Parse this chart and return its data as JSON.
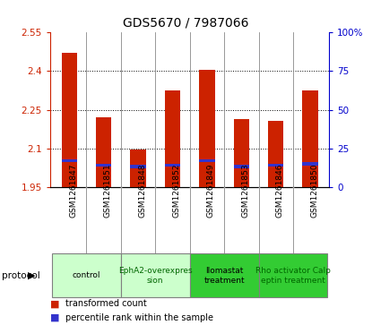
{
  "title": "GDS5670 / 7987066",
  "samples": [
    "GSM1261847",
    "GSM1261851",
    "GSM1261848",
    "GSM1261852",
    "GSM1261849",
    "GSM1261853",
    "GSM1261846",
    "GSM1261850"
  ],
  "transformed_counts": [
    2.47,
    2.22,
    2.095,
    2.325,
    2.405,
    2.215,
    2.205,
    2.325
  ],
  "percentile_ranks": [
    17,
    14,
    13,
    14,
    17,
    13,
    14,
    15
  ],
  "base_value": 1.95,
  "ylim_left": [
    1.95,
    2.55
  ],
  "ylim_right": [
    0,
    100
  ],
  "yticks_left": [
    1.95,
    2.1,
    2.25,
    2.4,
    2.55
  ],
  "yticks_right": [
    0,
    25,
    50,
    75,
    100
  ],
  "ytick_labels_left": [
    "1.95",
    "2.1",
    "2.25",
    "2.4",
    "2.55"
  ],
  "ytick_labels_right": [
    "0",
    "25",
    "50",
    "75",
    "100%"
  ],
  "bar_color": "#cc2200",
  "percentile_color": "#3333cc",
  "protocols": [
    {
      "label": "control",
      "indices": [
        0,
        1
      ],
      "color": "#ccffcc",
      "text_color": "#000000"
    },
    {
      "label": "EphA2-overexpres\nsion",
      "indices": [
        2,
        3
      ],
      "color": "#ccffcc",
      "text_color": "#006600"
    },
    {
      "label": "llomastat\ntreatment",
      "indices": [
        4,
        5
      ],
      "color": "#33cc33",
      "text_color": "#000000"
    },
    {
      "label": "Rho activator Calp\neptin treatment",
      "indices": [
        6,
        7
      ],
      "color": "#33cc33",
      "text_color": "#006600"
    }
  ],
  "legend_items": [
    {
      "label": "transformed count",
      "color": "#cc2200"
    },
    {
      "label": "percentile rank within the sample",
      "color": "#3333cc"
    }
  ],
  "protocol_label": "protocol",
  "bar_width": 0.45,
  "bg_color": "#ffffff",
  "left_tick_color": "#cc2200",
  "right_tick_color": "#0000cc",
  "sample_area_color": "#d0d0d0",
  "separator_color": "#888888"
}
